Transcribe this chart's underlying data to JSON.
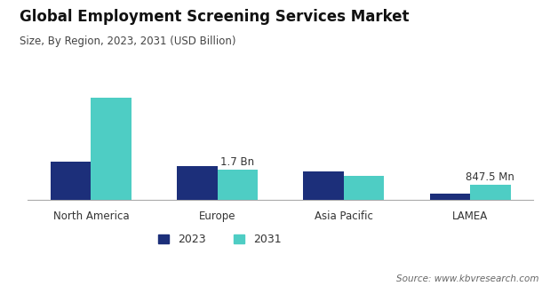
{
  "title": "Global Employment Screening Services Market",
  "subtitle": "Size, By Region, 2023, 2031 (USD Billion)",
  "categories": [
    "North America",
    "Europe",
    "Asia Pacific",
    "LAMEA"
  ],
  "values_2023": [
    2.2,
    1.9,
    1.6,
    0.38
  ],
  "values_2031": [
    5.8,
    1.7,
    1.35,
    0.8475
  ],
  "color_2023": "#1c2f7a",
  "color_2031": "#4ecdc4",
  "bar_width": 0.32,
  "legend_labels": [
    "2023",
    "2031"
  ],
  "source_text": "Source: www.kbvresearch.com",
  "background_color": "#ffffff",
  "title_fontsize": 12,
  "subtitle_fontsize": 8.5,
  "tick_fontsize": 8.5,
  "legend_fontsize": 9,
  "annot_fontsize": 8.5,
  "source_fontsize": 7.5
}
